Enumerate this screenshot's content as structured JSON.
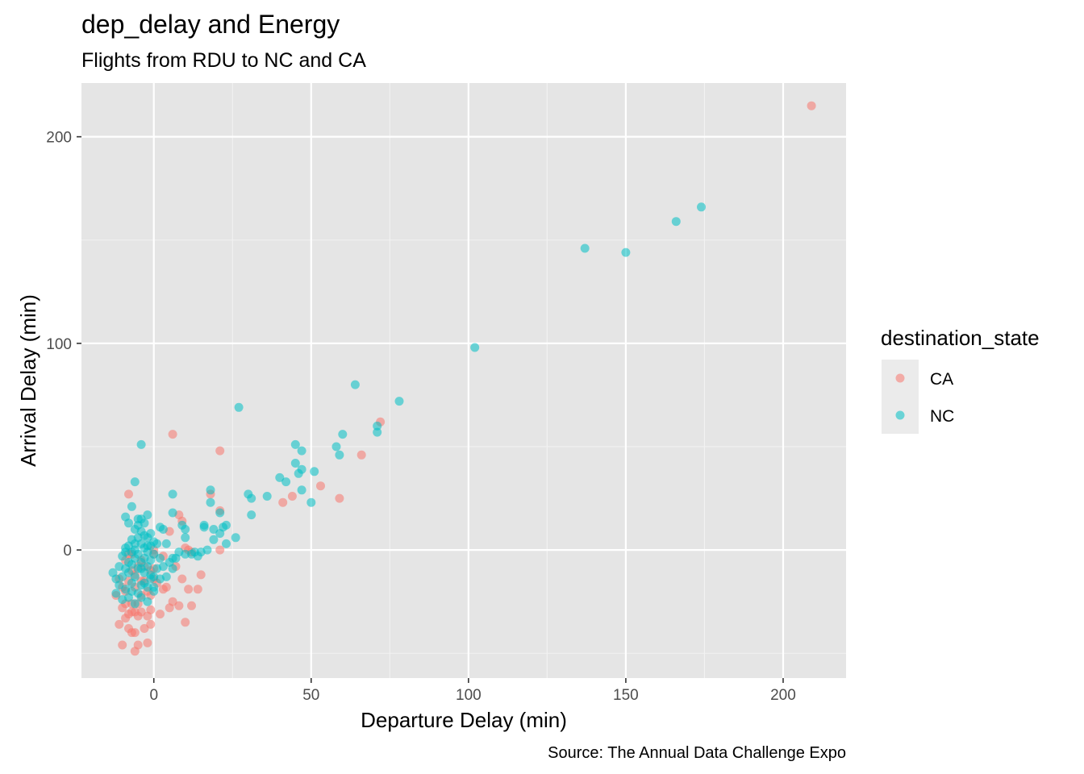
{
  "chart_data": {
    "type": "scatter",
    "title": "dep_delay and Energy",
    "subtitle": "Flights from RDU to NC and CA",
    "xlabel": "Departure Delay (min)",
    "ylabel": "Arrival Delay (min)",
    "caption": "Source: The Annual Data Challenge Expo",
    "xlim": [
      -23,
      220
    ],
    "ylim": [
      -62,
      226
    ],
    "x_ticks": [
      0,
      50,
      100,
      150,
      200
    ],
    "y_ticks": [
      0,
      100,
      200
    ],
    "grid": true,
    "point_opacity": 0.55,
    "legend": {
      "title": "destination_state",
      "position": "right",
      "entries": [
        {
          "label": "CA",
          "color": "#F8766D"
        },
        {
          "label": "NC",
          "color": "#00BFC4"
        }
      ]
    },
    "series": [
      {
        "name": "CA",
        "color": "#F8766D",
        "points": [
          [
            209,
            215
          ],
          [
            72,
            62
          ],
          [
            66,
            46
          ],
          [
            59,
            25
          ],
          [
            53,
            31
          ],
          [
            44,
            26
          ],
          [
            41,
            23
          ],
          [
            21,
            48
          ],
          [
            21,
            19
          ],
          [
            21,
            0
          ],
          [
            18,
            27
          ],
          [
            6,
            56
          ],
          [
            5,
            9
          ],
          [
            8,
            17
          ],
          [
            9,
            14
          ],
          [
            10,
            1
          ],
          [
            11,
            0
          ],
          [
            12,
            -1
          ],
          [
            15,
            -12
          ],
          [
            14,
            -19
          ],
          [
            12,
            -27
          ],
          [
            10,
            -35
          ],
          [
            8,
            -27
          ],
          [
            6,
            -25
          ],
          [
            5,
            -28
          ],
          [
            4,
            -18
          ],
          [
            3,
            -19
          ],
          [
            2,
            -31
          ],
          [
            1,
            -16
          ],
          [
            0,
            -9
          ],
          [
            0,
            -2
          ],
          [
            0,
            0
          ],
          [
            -1,
            -22
          ],
          [
            -1,
            -29
          ],
          [
            -2,
            -32
          ],
          [
            -2,
            -45
          ],
          [
            -3,
            -38
          ],
          [
            -3,
            -15
          ],
          [
            -4,
            -5
          ],
          [
            -4,
            -22
          ],
          [
            -5,
            -26
          ],
          [
            -5,
            -32
          ],
          [
            -5,
            -46
          ],
          [
            -6,
            -40
          ],
          [
            -6,
            -49
          ],
          [
            -6,
            -18
          ],
          [
            -7,
            -10
          ],
          [
            -7,
            -26
          ],
          [
            -7,
            -2
          ],
          [
            -8,
            -31
          ],
          [
            -8,
            -38
          ],
          [
            -8,
            -15
          ],
          [
            -9,
            -33
          ],
          [
            -9,
            -20
          ],
          [
            -9,
            -5
          ],
          [
            -10,
            -28
          ],
          [
            -10,
            -46
          ],
          [
            -11,
            -14
          ],
          [
            -11,
            -36
          ],
          [
            -12,
            -22
          ],
          [
            -8,
            27
          ],
          [
            -7,
            -30
          ],
          [
            -6,
            -12
          ],
          [
            -4,
            -30
          ],
          [
            -3,
            -8
          ],
          [
            -2,
            -20
          ],
          [
            -1,
            -10
          ],
          [
            -1,
            -36
          ],
          [
            -5,
            -8
          ],
          [
            -4,
            -15
          ],
          [
            3,
            -3
          ],
          [
            7,
            -8
          ],
          [
            9,
            -14
          ],
          [
            11,
            -19
          ],
          [
            -9,
            -26
          ],
          [
            -7,
            -40
          ],
          [
            -8,
            -2
          ],
          [
            -6,
            -30
          ],
          [
            -10,
            -18
          ],
          [
            0,
            -14
          ]
        ]
      },
      {
        "name": "NC",
        "color": "#00BFC4",
        "points": [
          [
            174,
            166
          ],
          [
            166,
            159
          ],
          [
            150,
            144
          ],
          [
            137,
            146
          ],
          [
            102,
            98
          ],
          [
            78,
            72
          ],
          [
            71,
            60
          ],
          [
            71,
            57
          ],
          [
            64,
            80
          ],
          [
            60,
            56
          ],
          [
            59,
            46
          ],
          [
            58,
            50
          ],
          [
            51,
            38
          ],
          [
            50,
            23
          ],
          [
            47,
            48
          ],
          [
            47,
            39
          ],
          [
            47,
            29
          ],
          [
            46,
            37
          ],
          [
            45,
            51
          ],
          [
            45,
            42
          ],
          [
            42,
            33
          ],
          [
            40,
            35
          ],
          [
            36,
            26
          ],
          [
            31,
            25
          ],
          [
            31,
            17
          ],
          [
            30,
            27
          ],
          [
            27,
            69
          ],
          [
            26,
            6
          ],
          [
            23,
            12
          ],
          [
            23,
            3
          ],
          [
            22,
            11
          ],
          [
            21,
            18
          ],
          [
            21,
            8
          ],
          [
            19,
            10
          ],
          [
            19,
            5
          ],
          [
            18,
            29
          ],
          [
            18,
            23
          ],
          [
            17,
            0
          ],
          [
            16,
            12
          ],
          [
            16,
            11
          ],
          [
            15,
            -1
          ],
          [
            14,
            -3
          ],
          [
            13,
            -1
          ],
          [
            12,
            -2
          ],
          [
            10,
            10
          ],
          [
            10,
            6
          ],
          [
            10,
            -2
          ],
          [
            9,
            12
          ],
          [
            8,
            -1
          ],
          [
            7,
            -4
          ],
          [
            6,
            27
          ],
          [
            6,
            18
          ],
          [
            6,
            -4
          ],
          [
            6,
            -9
          ],
          [
            5,
            -6
          ],
          [
            4,
            -13
          ],
          [
            4,
            3
          ],
          [
            3,
            10
          ],
          [
            3,
            -8
          ],
          [
            2,
            11
          ],
          [
            2,
            -4
          ],
          [
            1,
            -9
          ],
          [
            1,
            3
          ],
          [
            0,
            4
          ],
          [
            0,
            -2
          ],
          [
            0,
            -13
          ],
          [
            0,
            -20
          ],
          [
            -1,
            8
          ],
          [
            -1,
            2
          ],
          [
            -1,
            -5
          ],
          [
            -1,
            -14
          ],
          [
            -2,
            17
          ],
          [
            -2,
            6
          ],
          [
            -2,
            -1
          ],
          [
            -2,
            -8
          ],
          [
            -2,
            -18
          ],
          [
            -3,
            13
          ],
          [
            -3,
            7
          ],
          [
            -3,
            1
          ],
          [
            -3,
            -4
          ],
          [
            -3,
            -11
          ],
          [
            -4,
            51
          ],
          [
            -4,
            15
          ],
          [
            -4,
            9
          ],
          [
            -4,
            3
          ],
          [
            -4,
            -6
          ],
          [
            -4,
            -17
          ],
          [
            -5,
            12
          ],
          [
            -5,
            6
          ],
          [
            -5,
            -2
          ],
          [
            -5,
            -9
          ],
          [
            -5,
            -21
          ],
          [
            -6,
            33
          ],
          [
            -6,
            10
          ],
          [
            -6,
            3
          ],
          [
            -6,
            -4
          ],
          [
            -6,
            -13
          ],
          [
            -7,
            21
          ],
          [
            -7,
            5
          ],
          [
            -7,
            -1
          ],
          [
            -7,
            -7
          ],
          [
            -7,
            -16
          ],
          [
            -8,
            13
          ],
          [
            -8,
            2
          ],
          [
            -8,
            -6
          ],
          [
            -8,
            -11
          ],
          [
            -9,
            16
          ],
          [
            -9,
            1
          ],
          [
            -9,
            -9
          ],
          [
            -9,
            -19
          ],
          [
            -10,
            -3
          ],
          [
            -10,
            -13
          ],
          [
            -10,
            -24
          ],
          [
            -11,
            -8
          ],
          [
            -11,
            -17
          ],
          [
            -12,
            -21
          ],
          [
            -12,
            -14
          ],
          [
            -13,
            -11
          ],
          [
            -8,
            -23
          ],
          [
            -6,
            -26
          ],
          [
            -4,
            -23
          ],
          [
            -2,
            -25
          ],
          [
            0,
            -18
          ],
          [
            2,
            -14
          ],
          [
            -5,
            15
          ],
          [
            -3,
            -16
          ],
          [
            -7,
            -20
          ],
          [
            -9,
            -1
          ],
          [
            -1,
            -12
          ],
          [
            -4,
            -9
          ],
          [
            -6,
            0
          ],
          [
            -2,
            2
          ]
        ]
      }
    ]
  }
}
